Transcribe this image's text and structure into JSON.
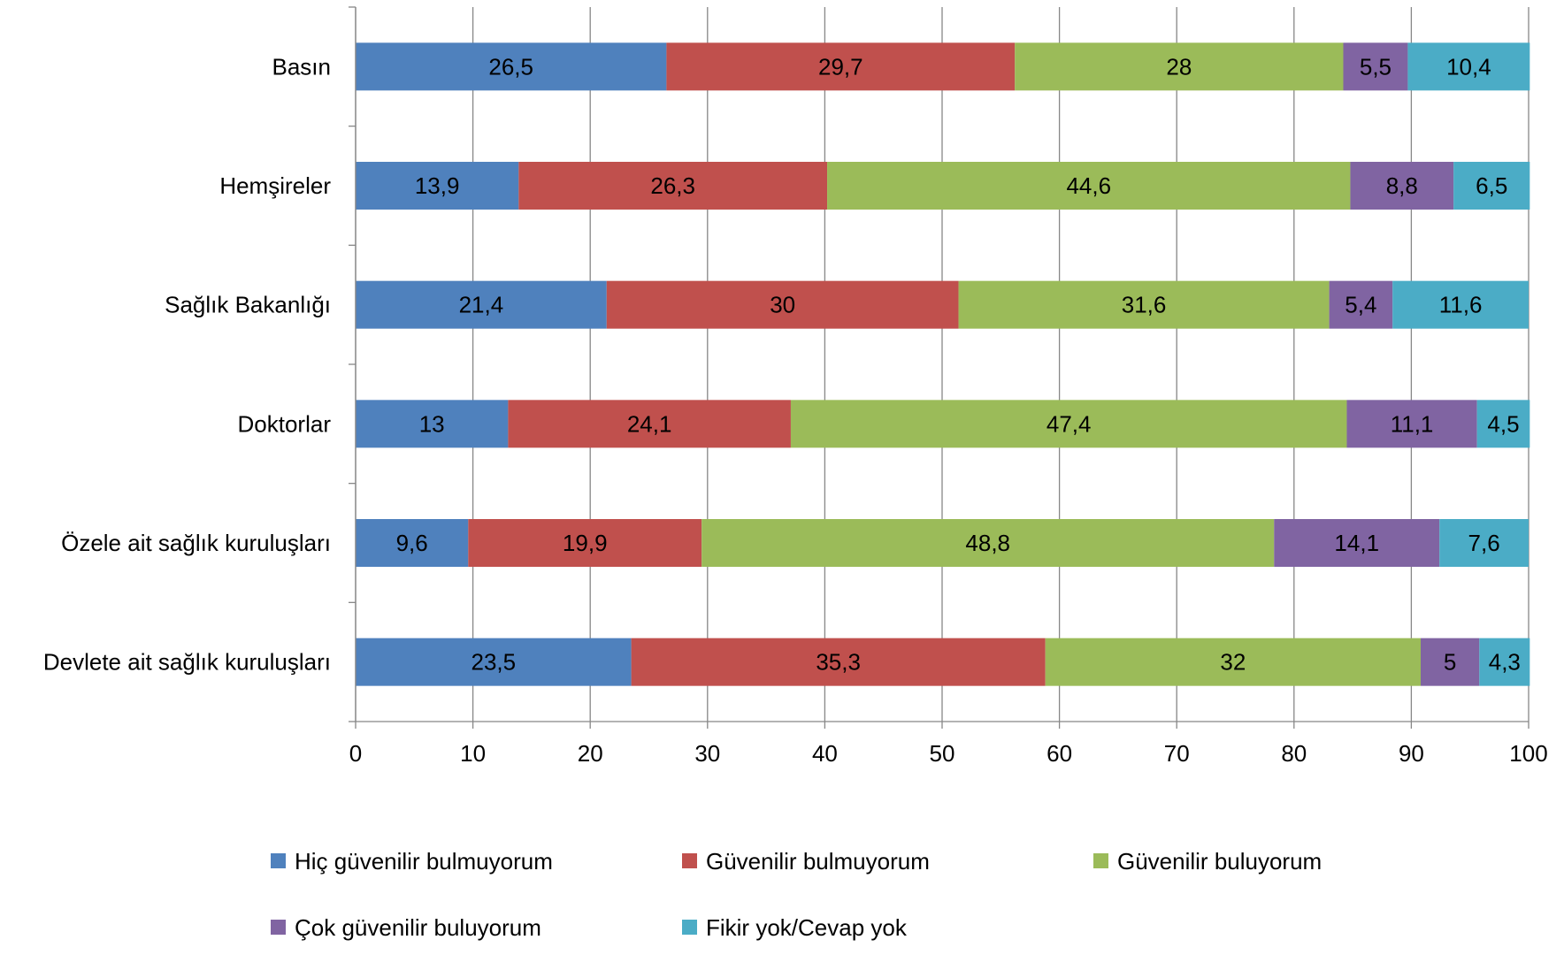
{
  "chart_data": {
    "type": "bar",
    "orientation": "horizontal",
    "stacked": true,
    "title": "",
    "xlabel": "",
    "ylabel": "",
    "xlim": [
      0,
      100
    ],
    "x_ticks": [
      0,
      10,
      20,
      30,
      40,
      50,
      60,
      70,
      80,
      90,
      100
    ],
    "grid": "vertical major gridlines",
    "legend_position": "bottom",
    "categories": [
      "Basın",
      "Hemşireler",
      "Sağlık Bakanlığı",
      "Doktorlar",
      "Özele ait sağlık kuruluşları",
      "Devlete ait sağlık kuruluşları"
    ],
    "series": [
      {
        "name": "Hiç güvenilir bulmuyorum",
        "color": "#4F81BD",
        "values": [
          26.5,
          13.9,
          21.4,
          13,
          9.6,
          23.5
        ],
        "labels": [
          "26,5",
          "13,9",
          "21,4",
          "13",
          "9,6",
          "23,5"
        ]
      },
      {
        "name": "Güvenilir bulmuyorum",
        "color": "#C0504D",
        "values": [
          29.7,
          26.3,
          30,
          24.1,
          19.9,
          35.3
        ],
        "labels": [
          "29,7",
          "26,3",
          "30",
          "24,1",
          "19,9",
          "35,3"
        ]
      },
      {
        "name": "Güvenilir buluyorum",
        "color": "#9BBB59",
        "values": [
          28,
          44.6,
          31.6,
          47.4,
          48.8,
          32
        ],
        "labels": [
          "28",
          "44,6",
          "31,6",
          "47,4",
          "48,8",
          "32"
        ]
      },
      {
        "name": "Çok güvenilir buluyorum",
        "color": "#8064A2",
        "values": [
          5.5,
          8.8,
          5.4,
          11.1,
          14.1,
          5
        ],
        "labels": [
          "5,5",
          "8,8",
          "5,4",
          "11,1",
          "14,1",
          "5"
        ]
      },
      {
        "name": "Fikir yok/Cevap yok",
        "color": "#4BACC6",
        "values": [
          10.4,
          6.5,
          11.6,
          4.5,
          7.6,
          4.3
        ],
        "labels": [
          "10,4",
          "6,5",
          "11,6",
          "4,5",
          "7,6",
          "4,3"
        ]
      }
    ]
  }
}
